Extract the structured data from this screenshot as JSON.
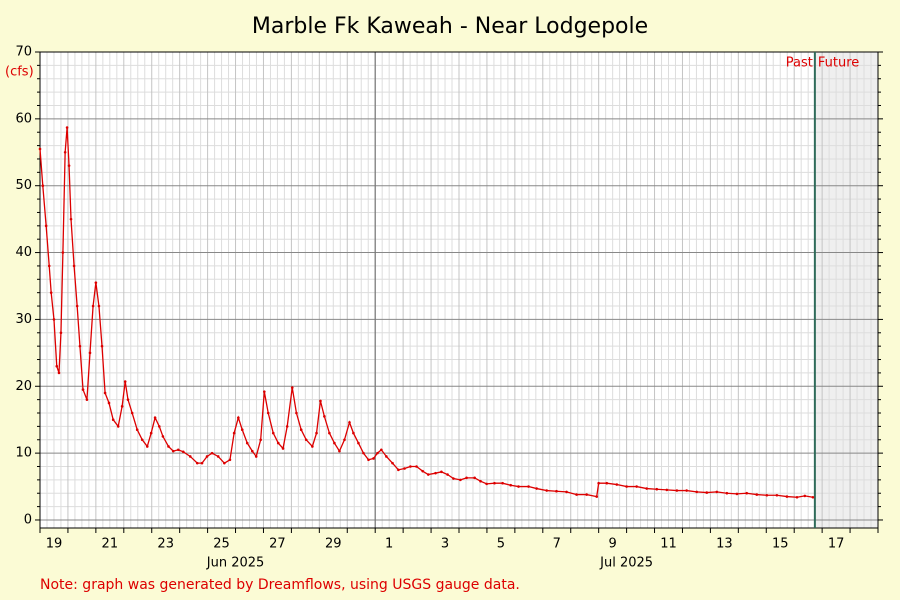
{
  "chart_data": {
    "type": "line",
    "title": "Marble Fk Kaweah - Near Lodgepole",
    "y_label": "(cfs)",
    "note": "Note: graph was generated by Dreamflows, using USGS gauge data.",
    "color": "#dd0000",
    "x": [
      19.0,
      19.1,
      19.22,
      19.33,
      19.4,
      19.5,
      19.6,
      19.68,
      19.75,
      19.82,
      19.9,
      19.97,
      20.04,
      20.11,
      20.22,
      20.33,
      20.43,
      20.54,
      20.68,
      20.79,
      20.9,
      21.0,
      21.11,
      21.22,
      21.33,
      21.47,
      21.62,
      21.8,
      21.94,
      22.05,
      22.15,
      22.3,
      22.48,
      22.66,
      22.84,
      22.98,
      23.12,
      23.27,
      23.4,
      23.6,
      23.77,
      23.95,
      24.13,
      24.38,
      24.63,
      24.8,
      24.98,
      25.16,
      25.38,
      25.6,
      25.8,
      25.95,
      26.1,
      26.24,
      26.42,
      26.6,
      26.74,
      26.9,
      27.03,
      27.17,
      27.35,
      27.53,
      27.7,
      27.85,
      28.03,
      28.18,
      28.35,
      28.53,
      28.75,
      28.9,
      29.04,
      29.18,
      29.36,
      29.54,
      29.72,
      29.9,
      30.08,
      30.22,
      30.4,
      30.58,
      30.76,
      30.94,
      31.08,
      31.22,
      31.4,
      31.62,
      31.83,
      32.05,
      32.26,
      32.48,
      32.7,
      32.9,
      33.16,
      33.37,
      33.59,
      33.8,
      34.05,
      34.27,
      34.56,
      34.77,
      34.99,
      35.27,
      35.56,
      35.85,
      36.13,
      36.49,
      36.78,
      37.14,
      37.49,
      37.85,
      38.21,
      38.57,
      38.93,
      39.0,
      39.29,
      39.65,
      40.0,
      40.36,
      40.72,
      41.08,
      41.44,
      41.8,
      42.15,
      42.51,
      42.87,
      43.23,
      43.59,
      43.95,
      44.3,
      44.66,
      45.02,
      45.38,
      45.74,
      46.1,
      46.38,
      46.67
    ],
    "values": [
      55.5,
      50,
      44,
      38,
      34,
      30,
      23,
      22,
      28,
      40,
      55,
      58.7,
      53,
      45,
      38,
      32,
      26,
      19.5,
      18,
      25,
      32,
      35.5,
      32,
      26,
      19,
      17.5,
      15,
      14,
      17,
      20.7,
      18,
      16,
      13.5,
      12,
      11,
      13,
      15.3,
      14,
      12.5,
      11,
      10.3,
      10.5,
      10.2,
      9.5,
      8.5,
      8.5,
      9.5,
      10,
      9.5,
      8.5,
      9,
      13,
      15.3,
      13.5,
      11.5,
      10.3,
      9.5,
      12,
      19.2,
      16,
      13,
      11.5,
      10.7,
      14,
      19.8,
      16,
      13.5,
      12,
      11,
      13,
      17.8,
      15.5,
      13,
      11.5,
      10.3,
      12,
      14.6,
      13,
      11.5,
      10,
      9,
      9.2,
      10,
      10.5,
      9.5,
      8.5,
      7.5,
      7.7,
      8,
      8,
      7.3,
      6.8,
      7,
      7.2,
      6.8,
      6.2,
      6,
      6.3,
      6.3,
      5.8,
      5.4,
      5.5,
      5.5,
      5.2,
      5,
      5,
      4.7,
      4.4,
      4.3,
      4.2,
      3.8,
      3.8,
      3.5,
      5.5,
      5.5,
      5.3,
      5,
      5,
      4.7,
      4.6,
      4.5,
      4.4,
      4.4,
      4.2,
      4.1,
      4.2,
      4,
      3.9,
      4,
      3.8,
      3.7,
      3.7,
      3.5,
      3.4,
      3.6,
      3.4
    ],
    "xlim": [
      19,
      49
    ],
    "ylim": [
      -1.2,
      70
    ],
    "yticks": [
      0,
      10,
      20,
      30,
      40,
      50,
      60,
      70
    ],
    "xticks": [
      {
        "value": 19.5,
        "label": "19"
      },
      {
        "value": 21.5,
        "label": "21"
      },
      {
        "value": 23.5,
        "label": "23"
      },
      {
        "value": 25.5,
        "label": "25"
      },
      {
        "value": 27.5,
        "label": "27"
      },
      {
        "value": 29.5,
        "label": "29"
      },
      {
        "value": 31.5,
        "label": "1"
      },
      {
        "value": 33.5,
        "label": "3"
      },
      {
        "value": 35.5,
        "label": "5"
      },
      {
        "value": 37.5,
        "label": "7"
      },
      {
        "value": 39.5,
        "label": "9"
      },
      {
        "value": 41.5,
        "label": "11"
      },
      {
        "value": 43.5,
        "label": "13"
      },
      {
        "value": 45.5,
        "label": "15"
      },
      {
        "value": 47.5,
        "label": "17"
      }
    ],
    "xticks_minor": [
      19,
      20,
      21,
      22,
      23,
      24,
      25,
      26,
      27,
      28,
      29,
      30,
      31,
      32,
      33,
      34,
      35,
      36,
      37,
      38,
      39,
      40,
      41,
      42,
      43,
      44,
      45,
      46,
      47,
      48,
      49
    ],
    "month_labels": [
      {
        "label": "Jun 2025",
        "x": 26
      },
      {
        "label": "Jul 2025",
        "x": 40
      }
    ],
    "month_divider": 31,
    "now": {
      "x": 46.74,
      "past": "Past",
      "future": "Future"
    },
    "grid": true
  }
}
